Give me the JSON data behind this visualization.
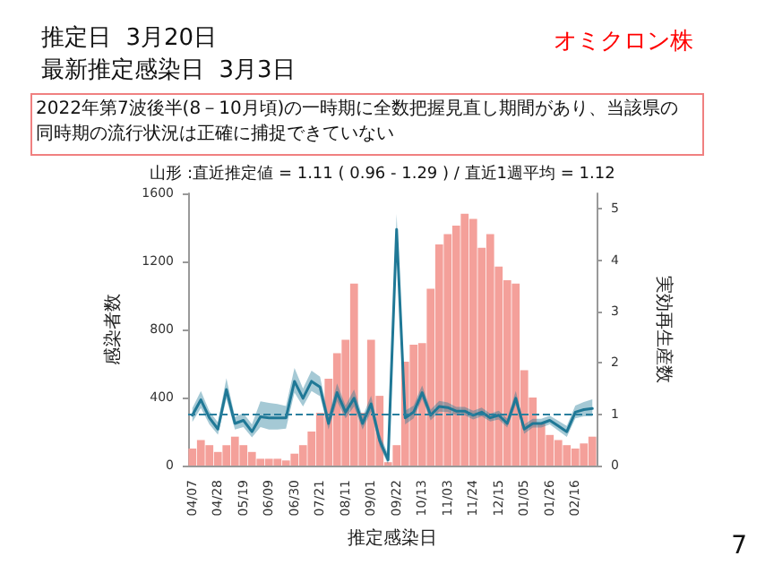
{
  "chart_data": {
    "type": "bar",
    "title": "推定日  3月20日",
    "subtitle": "最新推定感染日  3月3日",
    "annotations": [
      "オミクロン株",
      "2022年第7波後半(8－10月頃)の一時期に全数把握見直し期間があり、当該県の同時期の流行状況は正確に捕捉できていない",
      "山形 :直近推定値 = 1.11 ( 0.96 - 1.29 ) / 直近1週平均 = 1.12",
      "7"
    ],
    "xlabel": "推定感染日",
    "ylabel": "感染者数",
    "y2label": "実効再生産数",
    "categories": [
      "04/07",
      null,
      null,
      "04/28",
      null,
      null,
      "05/19",
      null,
      null,
      "06/09",
      null,
      null,
      "06/30",
      null,
      null,
      "07/21",
      null,
      null,
      "08/11",
      null,
      null,
      "09/01",
      null,
      null,
      "09/22",
      null,
      null,
      "10/13",
      null,
      null,
      "11/03",
      null,
      null,
      "11/24",
      null,
      null,
      "12/15",
      null,
      null,
      "01/05",
      null,
      null,
      "01/26",
      null,
      null,
      "02/16",
      null,
      null
    ],
    "series": [
      {
        "color": "#f4a09a",
        "values": [
          100,
          150,
          120,
          80,
          120,
          170,
          120,
          80,
          40,
          40,
          40,
          30,
          70,
          120,
          200,
          310,
          510,
          660,
          740,
          1070,
          310,
          740,
          410,
          20,
          120,
          610,
          710,
          720,
          1040,
          1300,
          1360,
          1410,
          1480,
          1450,
          1280,
          1360,
          1170,
          1090,
          1070,
          560,
          400,
          250,
          180,
          150,
          120,
          100,
          130,
          170
        ]
      },
      {
        "type": "line",
        "axis": "y2",
        "color": "#1f7896",
        "marker": "none",
        "line_style": "solid",
        "values": [
          0.98,
          1.28,
          0.93,
          0.71,
          1.48,
          0.82,
          0.88,
          0.66,
          0.95,
          0.93,
          0.93,
          0.93,
          1.64,
          1.31,
          1.64,
          1.53,
          0.82,
          1.42,
          1.04,
          1.31,
          0.82,
          1.2,
          0.49,
          0.11,
          4.6,
          0.93,
          1.04,
          1.42,
          0.98,
          1.15,
          1.13,
          1.06,
          1.06,
          0.98,
          1.04,
          0.93,
          0.98,
          0.82,
          1.31,
          0.71,
          0.82,
          0.82,
          0.88,
          0.77,
          0.66,
          1.04,
          1.09,
          1.11
        ],
        "lower": [
          0.85,
          1.12,
          0.8,
          0.6,
          1.3,
          0.7,
          0.75,
          0.55,
          0.75,
          0.7,
          0.7,
          0.72,
          1.42,
          1.15,
          1.45,
          1.35,
          0.7,
          1.25,
          0.92,
          1.15,
          0.7,
          1.05,
          0.38,
          0.02,
          4.3,
          0.8,
          0.92,
          1.3,
          0.88,
          1.05,
          1.04,
          0.98,
          0.98,
          0.9,
          0.96,
          0.86,
          0.9,
          0.74,
          1.18,
          0.62,
          0.74,
          0.74,
          0.8,
          0.68,
          0.56,
          0.92,
          0.96,
          0.96
        ],
        "upper": [
          1.12,
          1.45,
          1.06,
          0.84,
          1.7,
          0.95,
          1.02,
          0.8,
          1.25,
          1.22,
          1.2,
          1.16,
          1.9,
          1.5,
          1.85,
          1.73,
          0.96,
          1.6,
          1.17,
          1.48,
          0.95,
          1.36,
          0.62,
          0.22,
          4.9,
          1.07,
          1.17,
          1.56,
          1.09,
          1.26,
          1.23,
          1.14,
          1.14,
          1.07,
          1.13,
          1.01,
          1.07,
          0.91,
          1.45,
          0.8,
          0.91,
          0.91,
          0.97,
          0.87,
          0.77,
          1.17,
          1.24,
          1.29
        ]
      }
    ],
    "ylim": [
      0,
      1600
    ],
    "yticks": [
      0,
      400,
      800,
      1200,
      1600
    ],
    "y2lim": [
      0,
      5.3
    ],
    "y2ticks": [
      0,
      1,
      2,
      3,
      4,
      5
    ],
    "ref_lines": [
      {
        "axis": "y2",
        "value": 1,
        "color": "#2a7f9e",
        "line_style": "dashed"
      }
    ]
  }
}
